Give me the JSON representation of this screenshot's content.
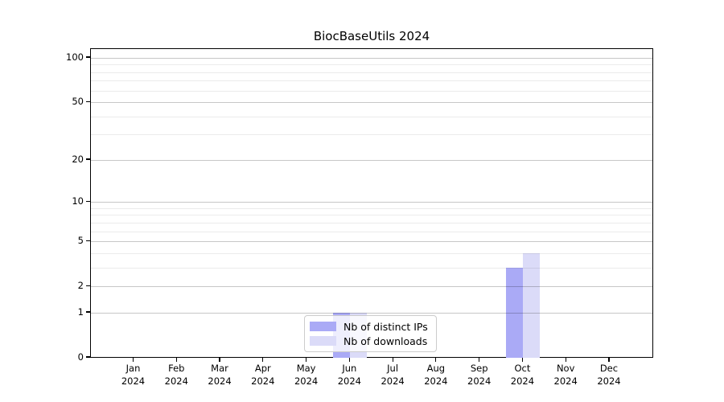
{
  "chart_data": {
    "type": "bar",
    "title": "BiocBaseUtils 2024",
    "categories": [
      "Jan 2024",
      "Feb 2024",
      "Mar 2024",
      "Apr 2024",
      "May 2024",
      "Jun 2024",
      "Jul 2024",
      "Aug 2024",
      "Sep 2024",
      "Oct 2024",
      "Nov 2024",
      "Dec 2024"
    ],
    "series": [
      {
        "name": "Nb of distinct IPs",
        "color": "#aaaaf6",
        "values": [
          0,
          0,
          0,
          0,
          0,
          1,
          0,
          0,
          0,
          3,
          0,
          0
        ]
      },
      {
        "name": "Nb of downloads",
        "color": "#dbdbf8",
        "values": [
          0,
          0,
          0,
          0,
          0,
          1,
          0,
          0,
          0,
          4,
          0,
          0
        ]
      }
    ],
    "y_axis": {
      "scale": "log10(value+1)",
      "ticks": [
        0,
        1,
        2,
        5,
        10,
        20,
        50,
        100
      ],
      "minor_gridlines": [
        3,
        4,
        6,
        7,
        8,
        9,
        30,
        40,
        60,
        70,
        80,
        90
      ],
      "range_top": 113
    },
    "x_axis": {
      "label_lines": 2
    },
    "legend": {
      "position": "lower-center-inside"
    },
    "grid": true,
    "colors": {
      "major_grid": "rgba(0,0,0,0.22)",
      "minor_grid": "rgba(0,0,0,0.08)",
      "spine": "#000000",
      "background": "#ffffff"
    }
  }
}
